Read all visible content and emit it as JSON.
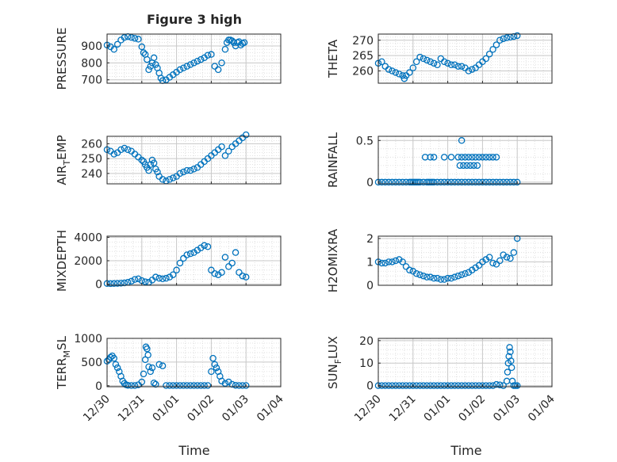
{
  "figure_title": "Figure 3 high",
  "x_axis_label": "Time",
  "x_tick_labels": [
    "12/30",
    "12/31",
    "01/01",
    "01/02",
    "01/03",
    "01/04"
  ],
  "colors": {
    "marker": "#0072BD",
    "grid": "#d9d9d9",
    "axis": "#262626"
  },
  "chart_data": [
    {
      "type": "scatter",
      "ylabel": "PRESSURE",
      "ylabel_sub": "",
      "xlim": [
        0,
        5
      ],
      "ylim": [
        680,
        970
      ],
      "yticks": [
        700,
        800,
        900
      ],
      "ytick_labels": [
        "700",
        "800",
        "900"
      ],
      "series": [
        {
          "x": [
            0,
            0.1,
            0.2,
            0.3,
            0.4,
            0.5,
            0.6,
            0.7,
            0.8,
            0.9,
            1.0,
            1.05,
            1.1,
            1.15,
            1.2,
            1.25,
            1.3,
            1.35,
            1.4,
            1.45,
            1.5,
            1.55,
            1.6,
            1.7,
            1.8,
            1.9,
            2.0,
            2.1,
            2.2,
            2.3,
            2.4,
            2.5,
            2.6,
            2.7,
            2.8,
            2.9,
            3.0,
            3.1,
            3.2,
            3.3,
            3.4,
            3.45,
            3.5,
            3.55,
            3.6,
            3.65,
            3.7,
            3.75,
            3.8,
            3.85,
            3.9,
            3.95
          ],
          "y": [
            905,
            895,
            880,
            910,
            935,
            950,
            955,
            950,
            945,
            940,
            895,
            860,
            850,
            820,
            760,
            780,
            800,
            830,
            790,
            770,
            740,
            710,
            695,
            700,
            715,
            730,
            745,
            760,
            770,
            780,
            790,
            800,
            810,
            820,
            830,
            845,
            850,
            780,
            760,
            800,
            880,
            920,
            935,
            935,
            930,
            920,
            900,
            920,
            925,
            905,
            915,
            920
          ]
        }
      ]
    },
    {
      "type": "scatter",
      "ylabel": "THETA",
      "ylabel_sub": "",
      "xlim": [
        0,
        5
      ],
      "ylim": [
        256,
        272
      ],
      "yticks": [
        260,
        265,
        270
      ],
      "ytick_labels": [
        "260",
        "265",
        "270"
      ],
      "series": [
        {
          "x": [
            0,
            0.1,
            0.2,
            0.3,
            0.4,
            0.5,
            0.6,
            0.7,
            0.75,
            0.8,
            0.9,
            1.0,
            1.1,
            1.2,
            1.3,
            1.4,
            1.5,
            1.6,
            1.7,
            1.8,
            1.9,
            2.0,
            2.1,
            2.2,
            2.3,
            2.4,
            2.5,
            2.6,
            2.7,
            2.8,
            2.9,
            3.0,
            3.1,
            3.2,
            3.3,
            3.4,
            3.5,
            3.6,
            3.7,
            3.8,
            3.9,
            4.0
          ],
          "y": [
            262.5,
            263,
            261.5,
            260.5,
            260,
            259.5,
            259,
            258.5,
            257.5,
            258.5,
            259.5,
            261,
            263,
            264.5,
            264,
            263.5,
            263,
            262.5,
            262,
            264,
            263,
            262.5,
            262,
            262,
            261.5,
            261.5,
            261,
            260,
            260.5,
            261,
            262,
            263,
            264,
            265.5,
            267,
            268.5,
            270,
            270.5,
            270.8,
            271,
            271.2,
            271.5
          ]
        }
      ]
    },
    {
      "type": "scatter",
      "ylabel": "AIR",
      "ylabel_sub": "T",
      "ylabel_rest": "EMP",
      "xlim": [
        0,
        5
      ],
      "ylim": [
        233,
        265
      ],
      "yticks": [
        240,
        250,
        260
      ],
      "ytick_labels": [
        "240",
        "250",
        "260"
      ],
      "series": [
        {
          "x": [
            0,
            0.1,
            0.2,
            0.3,
            0.4,
            0.5,
            0.6,
            0.7,
            0.8,
            0.9,
            1.0,
            1.05,
            1.1,
            1.15,
            1.2,
            1.25,
            1.3,
            1.35,
            1.4,
            1.45,
            1.5,
            1.6,
            1.7,
            1.8,
            1.9,
            2.0,
            2.1,
            2.2,
            2.3,
            2.4,
            2.5,
            2.6,
            2.7,
            2.8,
            2.9,
            3.0,
            3.1,
            3.2,
            3.3,
            3.4,
            3.5,
            3.6,
            3.7,
            3.8,
            3.9,
            4.0
          ],
          "y": [
            256,
            255,
            253,
            254,
            256,
            257,
            256,
            255,
            253,
            251,
            249,
            248,
            246,
            244,
            242,
            246,
            249,
            247,
            243,
            241,
            238,
            236,
            235,
            236,
            237,
            238,
            240,
            241,
            242,
            242,
            243,
            244,
            246,
            248,
            250,
            252,
            254,
            256,
            258,
            252,
            255,
            258,
            260,
            262,
            264,
            266
          ]
        }
      ]
    },
    {
      "type": "scatter",
      "ylabel": "RAINFALL",
      "ylabel_sub": "",
      "xlim": [
        0,
        5
      ],
      "ylim": [
        -0.02,
        0.55
      ],
      "yticks": [
        0,
        0.5
      ],
      "ytick_labels": [
        "0",
        "0.5"
      ],
      "series": [
        {
          "x": [
            0,
            0.1,
            0.2,
            0.3,
            0.4,
            0.5,
            0.6,
            0.7,
            0.8,
            0.9,
            0.95,
            1.0,
            1.05,
            1.1,
            1.15,
            1.2,
            1.3,
            1.4,
            1.45,
            1.5,
            1.55,
            1.6,
            1.7,
            1.8,
            1.9,
            2.0,
            2.1,
            2.2,
            2.3,
            2.4,
            2.5,
            2.6,
            2.7,
            2.8,
            2.9,
            3.0,
            3.1,
            3.2,
            3.3,
            3.4,
            3.5,
            3.6,
            3.7,
            3.8,
            3.9,
            4.0,
            1.35,
            1.5,
            1.6,
            1.9,
            2.1,
            2.3,
            2.4,
            2.5,
            2.6,
            2.7,
            2.8,
            2.9,
            3.0,
            3.1,
            3.2,
            3.3,
            3.4,
            2.35,
            2.45,
            2.55,
            2.65,
            2.75,
            2.85,
            2.4
          ],
          "y": [
            0,
            0,
            0,
            0,
            0,
            0,
            0,
            0,
            0,
            0,
            0,
            0,
            0,
            0,
            0,
            0,
            0,
            0,
            0,
            0,
            0,
            0,
            0,
            0,
            0,
            0,
            0,
            0,
            0,
            0,
            0,
            0,
            0,
            0,
            0,
            0,
            0,
            0,
            0,
            0,
            0,
            0,
            0,
            0,
            0,
            0,
            0.3,
            0.3,
            0.3,
            0.3,
            0.3,
            0.3,
            0.3,
            0.3,
            0.3,
            0.3,
            0.3,
            0.3,
            0.3,
            0.3,
            0.3,
            0.3,
            0.3,
            0.2,
            0.2,
            0.2,
            0.2,
            0.2,
            0.2,
            0.5
          ]
        }
      ]
    },
    {
      "type": "scatter",
      "ylabel": "MIXDEPTH",
      "ylabel_sub": "",
      "xlim": [
        0,
        5
      ],
      "ylim": [
        -100,
        4100
      ],
      "yticks": [
        0,
        2000,
        4000
      ],
      "ytick_labels": [
        "0",
        "2000",
        "4000"
      ],
      "series": [
        {
          "x": [
            0,
            0.1,
            0.2,
            0.3,
            0.4,
            0.5,
            0.6,
            0.7,
            0.8,
            0.9,
            1.0,
            1.1,
            1.2,
            1.3,
            1.4,
            1.5,
            1.6,
            1.7,
            1.8,
            1.9,
            2.0,
            2.1,
            2.2,
            2.3,
            2.4,
            2.5,
            2.6,
            2.7,
            2.8,
            2.9,
            3.0,
            3.1,
            3.2,
            3.3,
            3.4,
            3.5,
            3.6,
            3.7,
            3.8,
            3.9,
            4.0
          ],
          "y": [
            50,
            40,
            50,
            60,
            80,
            100,
            150,
            250,
            400,
            450,
            300,
            200,
            150,
            350,
            600,
            500,
            450,
            500,
            600,
            800,
            1200,
            1800,
            2200,
            2500,
            2600,
            2700,
            2900,
            3100,
            3300,
            3200,
            1200,
            900,
            800,
            1000,
            2300,
            1500,
            1800,
            2700,
            1000,
            700,
            600
          ]
        }
      ]
    },
    {
      "type": "scatter",
      "ylabel": "H2OMIXRA",
      "ylabel_sub": "",
      "xlim": [
        0,
        5
      ],
      "ylim": [
        0,
        2.1
      ],
      "yticks": [
        0,
        1,
        2
      ],
      "ytick_labels": [
        "0",
        "1",
        "2"
      ],
      "series": [
        {
          "x": [
            0,
            0.1,
            0.2,
            0.3,
            0.4,
            0.5,
            0.6,
            0.7,
            0.8,
            0.9,
            1.0,
            1.1,
            1.2,
            1.3,
            1.4,
            1.5,
            1.6,
            1.7,
            1.8,
            1.9,
            2.0,
            2.1,
            2.2,
            2.3,
            2.4,
            2.5,
            2.6,
            2.7,
            2.8,
            2.9,
            3.0,
            3.1,
            3.2,
            3.3,
            3.4,
            3.5,
            3.6,
            3.7,
            3.8,
            3.9,
            4.0
          ],
          "y": [
            1.0,
            0.95,
            0.95,
            1.0,
            1.0,
            1.05,
            1.1,
            1.0,
            0.8,
            0.65,
            0.6,
            0.5,
            0.45,
            0.4,
            0.35,
            0.35,
            0.3,
            0.3,
            0.25,
            0.25,
            0.3,
            0.3,
            0.35,
            0.4,
            0.45,
            0.5,
            0.55,
            0.65,
            0.75,
            0.85,
            1.0,
            1.1,
            1.2,
            0.95,
            0.9,
            1.05,
            1.3,
            1.2,
            1.15,
            1.4,
            2.0
          ]
        }
      ]
    },
    {
      "type": "scatter",
      "ylabel": "TERR",
      "ylabel_sub": "M",
      "ylabel_rest": "SL",
      "xlim": [
        0,
        5
      ],
      "ylim": [
        -20,
        1000
      ],
      "yticks": [
        0,
        500,
        1000
      ],
      "ytick_labels": [
        "0",
        "500",
        "1000"
      ],
      "series": [
        {
          "x": [
            0,
            0.05,
            0.1,
            0.15,
            0.2,
            0.25,
            0.3,
            0.35,
            0.4,
            0.45,
            0.5,
            0.55,
            0.6,
            0.7,
            0.8,
            0.9,
            1.0,
            1.05,
            1.1,
            1.12,
            1.15,
            1.18,
            1.2,
            1.25,
            1.3,
            1.35,
            1.4,
            1.5,
            1.6,
            1.7,
            1.8,
            1.9,
            2.0,
            2.1,
            2.2,
            2.3,
            2.4,
            2.5,
            2.6,
            2.7,
            2.8,
            2.9,
            3.0,
            3.05,
            3.1,
            3.15,
            3.2,
            3.25,
            3.3,
            3.4,
            3.5,
            3.6,
            3.7,
            3.8,
            3.9,
            4.0
          ],
          "y": [
            520,
            550,
            600,
            630,
            580,
            450,
            380,
            300,
            200,
            100,
            50,
            20,
            10,
            5,
            5,
            20,
            80,
            250,
            550,
            820,
            780,
            650,
            400,
            300,
            380,
            60,
            30,
            450,
            420,
            5,
            5,
            5,
            5,
            5,
            5,
            5,
            5,
            5,
            5,
            5,
            5,
            5,
            300,
            580,
            450,
            380,
            300,
            200,
            100,
            50,
            80,
            30,
            10,
            5,
            5,
            5
          ]
        }
      ]
    },
    {
      "type": "scatter",
      "ylabel": "SUN",
      "ylabel_sub": "F",
      "ylabel_rest": "LUX",
      "xlim": [
        0,
        5
      ],
      "ylim": [
        -0.5,
        21
      ],
      "yticks": [
        0,
        10,
        20
      ],
      "ytick_labels": [
        "0",
        "10",
        "20"
      ],
      "series": [
        {
          "x": [
            0,
            0.1,
            0.2,
            0.3,
            0.4,
            0.5,
            0.6,
            0.7,
            0.8,
            0.9,
            1.0,
            1.1,
            1.2,
            1.3,
            1.4,
            1.5,
            1.6,
            1.7,
            1.8,
            1.9,
            2.0,
            2.1,
            2.2,
            2.3,
            2.4,
            2.5,
            2.6,
            2.7,
            2.8,
            2.9,
            3.0,
            3.1,
            3.2,
            3.3,
            3.4,
            3.5,
            3.6,
            3.7,
            3.72,
            3.74,
            3.76,
            3.78,
            3.8,
            3.82,
            3.84,
            3.86,
            3.9,
            3.95,
            4.0
          ],
          "y": [
            0,
            0,
            0,
            0,
            0,
            0,
            0,
            0,
            0,
            0,
            0,
            0,
            0,
            0,
            0,
            0,
            0,
            0,
            0,
            0,
            0,
            0,
            0,
            0,
            0,
            0,
            0,
            0,
            0,
            0,
            0,
            0,
            0,
            0,
            0.5,
            0.3,
            0,
            2,
            6,
            10,
            13,
            17,
            15,
            11,
            8,
            2,
            0,
            0,
            0
          ]
        }
      ]
    }
  ]
}
